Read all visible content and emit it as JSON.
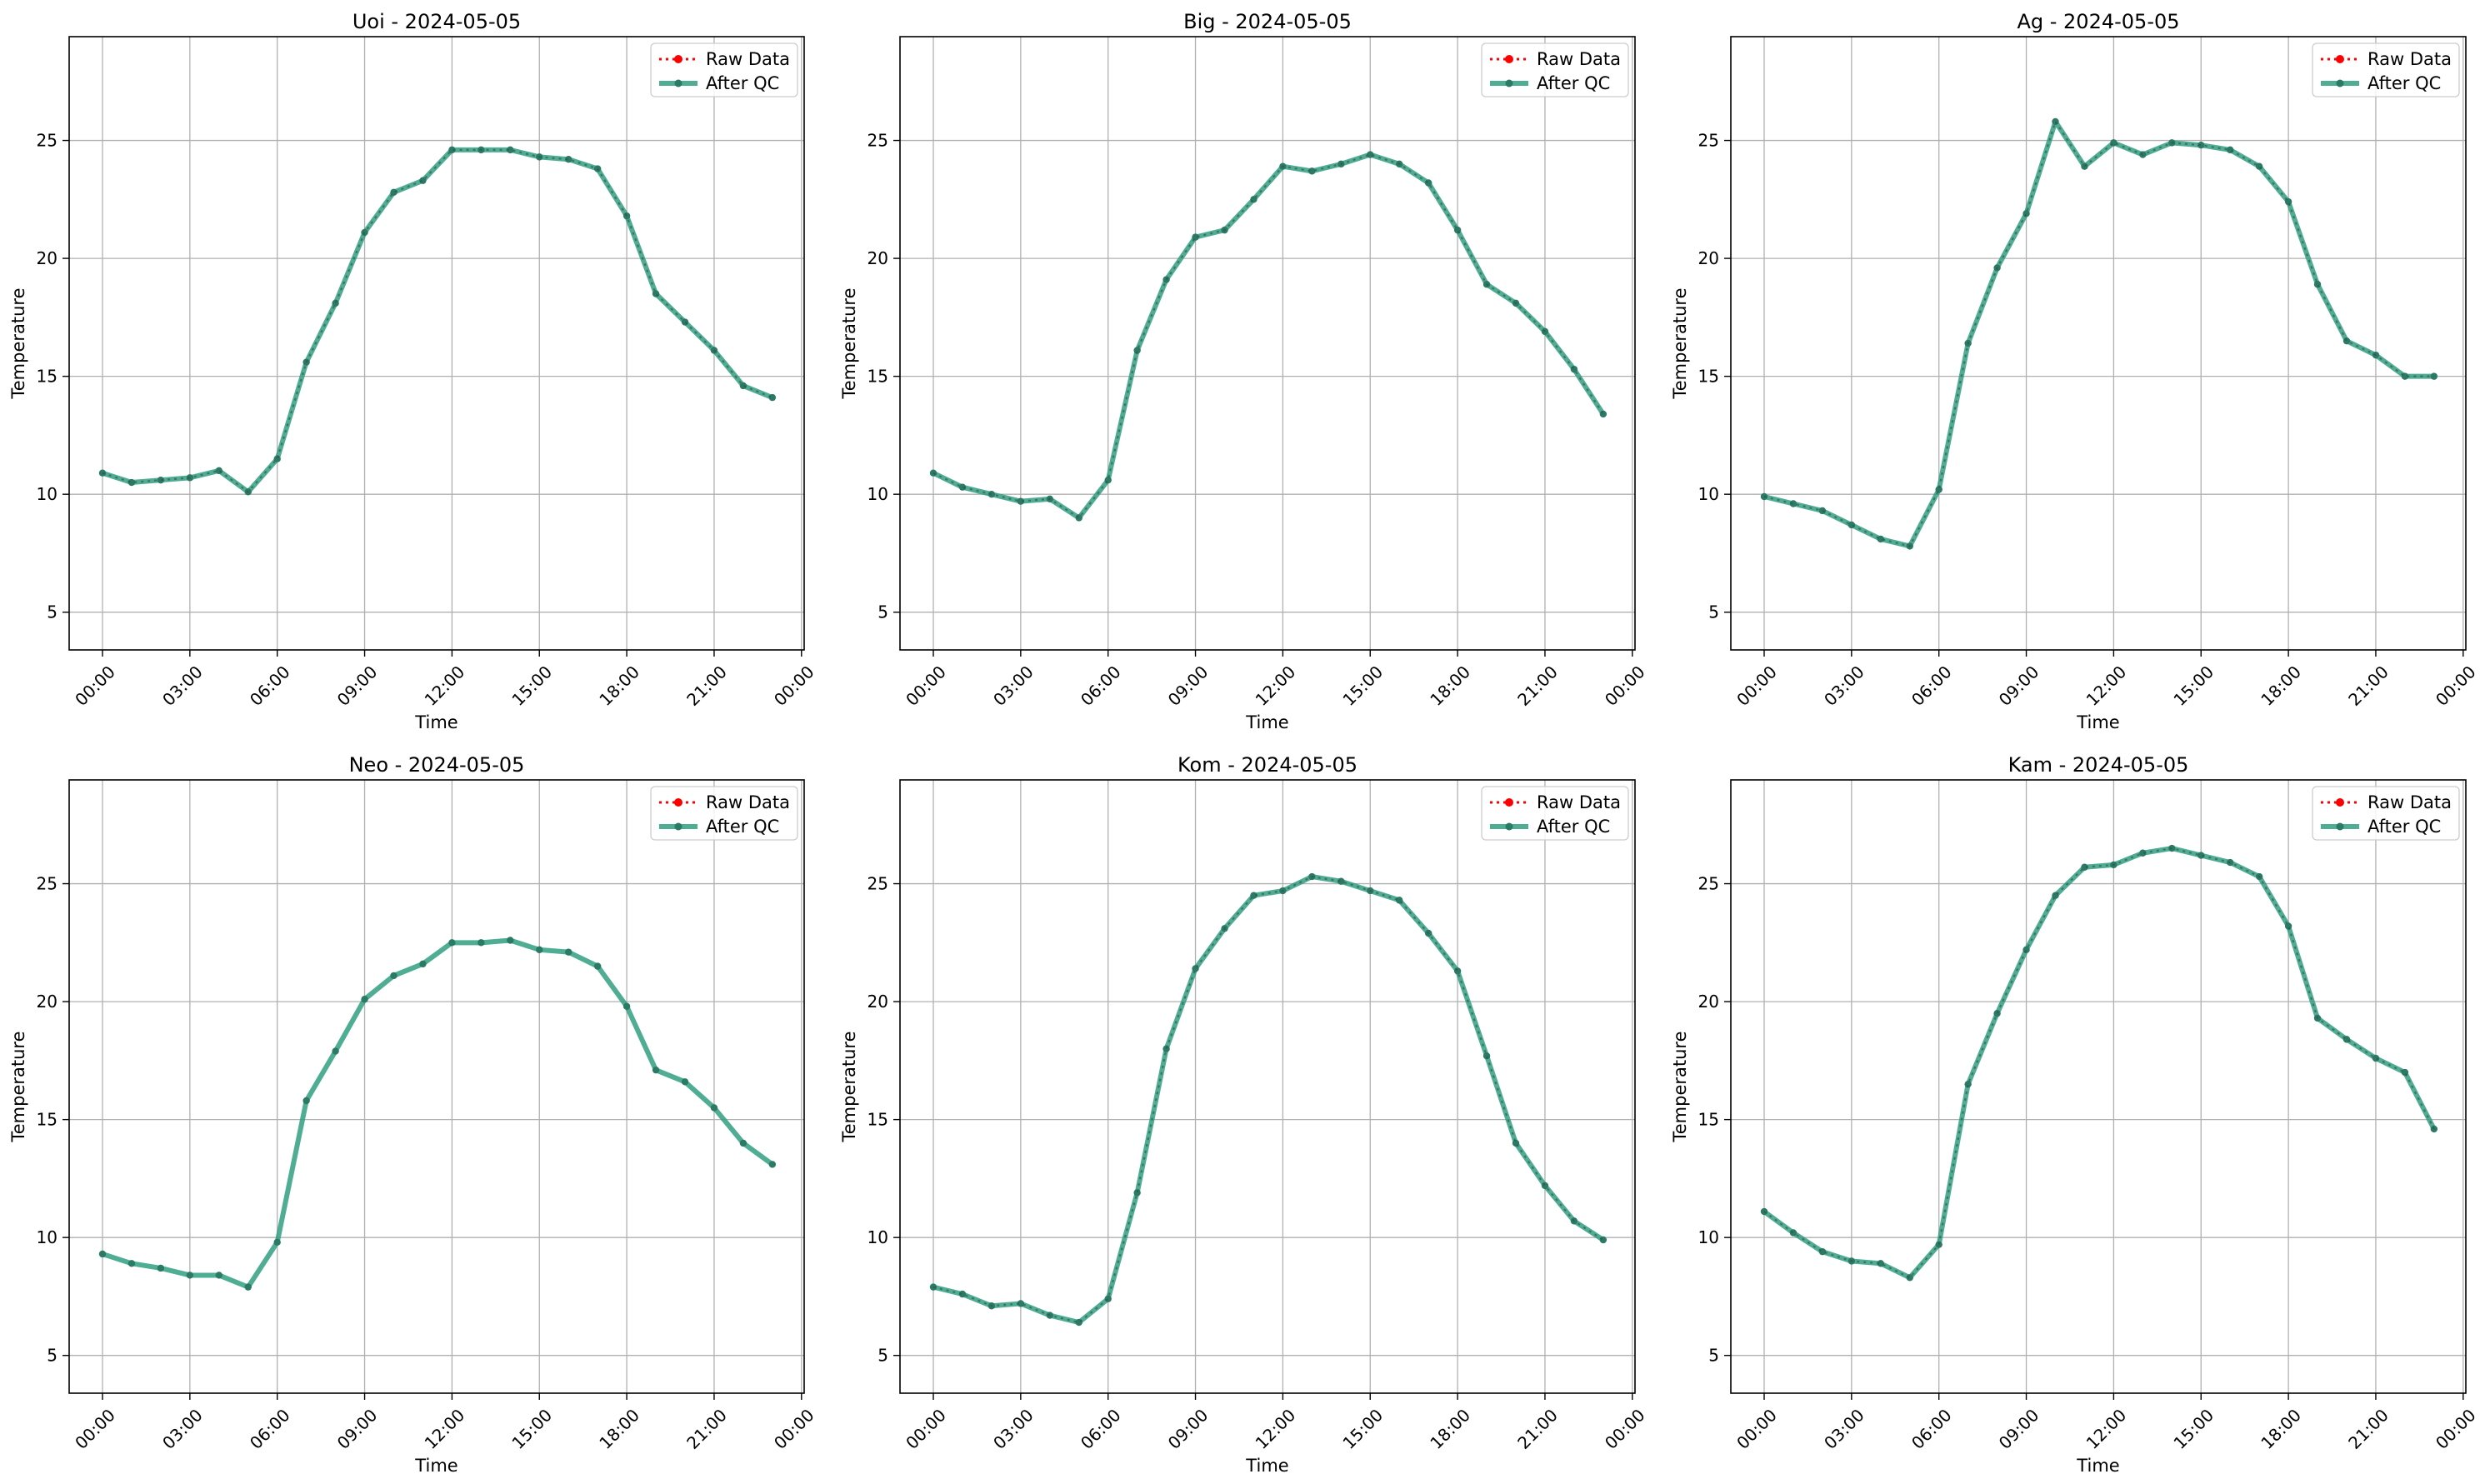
{
  "chart_data": [
    {
      "type": "line",
      "title": "Uoi - 2024-05-05",
      "xlabel": "Time",
      "ylabel": "Temperature",
      "x": [
        0,
        1,
        2,
        3,
        4,
        5,
        6,
        7,
        8,
        9,
        10,
        11,
        12,
        13,
        14,
        15,
        16,
        17,
        18,
        19,
        20,
        21,
        22,
        23
      ],
      "x_tick_labels": [
        "00:00",
        "03:00",
        "06:00",
        "09:00",
        "12:00",
        "15:00",
        "18:00",
        "21:00",
        "00:00"
      ],
      "y_ticks": [
        5,
        10,
        15,
        20,
        25
      ],
      "ylim": [
        3.4,
        29.4
      ],
      "grid": true,
      "legend_position": "top-right",
      "series": [
        {
          "name": "Raw Data",
          "values": [
            10.9,
            10.5,
            10.6,
            10.7,
            11.0,
            10.1,
            11.5,
            15.6,
            18.1,
            21.1,
            22.8,
            23.3,
            24.6,
            24.6,
            24.6,
            24.3,
            24.2,
            23.8,
            21.8,
            18.5,
            17.3,
            16.1,
            14.6,
            14.1
          ]
        },
        {
          "name": "After QC",
          "values": [
            10.9,
            10.5,
            10.6,
            10.7,
            11.0,
            10.1,
            11.5,
            15.6,
            18.1,
            21.1,
            22.8,
            23.3,
            24.6,
            24.6,
            24.6,
            24.3,
            24.2,
            23.8,
            21.8,
            18.5,
            17.3,
            16.1,
            14.6,
            14.1
          ]
        }
      ]
    },
    {
      "type": "line",
      "title": "Big - 2024-05-05",
      "xlabel": "Time",
      "ylabel": "Temperature",
      "x": [
        0,
        1,
        2,
        3,
        4,
        5,
        6,
        7,
        8,
        9,
        10,
        11,
        12,
        13,
        14,
        15,
        16,
        17,
        18,
        19,
        20,
        21,
        22,
        23
      ],
      "x_tick_labels": [
        "00:00",
        "03:00",
        "06:00",
        "09:00",
        "12:00",
        "15:00",
        "18:00",
        "21:00",
        "00:00"
      ],
      "y_ticks": [
        5,
        10,
        15,
        20,
        25
      ],
      "ylim": [
        3.4,
        29.4
      ],
      "grid": true,
      "legend_position": "top-right",
      "series": [
        {
          "name": "Raw Data",
          "values": [
            10.9,
            10.3,
            10.0,
            9.7,
            9.8,
            9.0,
            10.6,
            16.1,
            19.1,
            20.9,
            21.2,
            22.5,
            23.9,
            23.7,
            24.0,
            24.4,
            24.0,
            23.2,
            21.2,
            18.9,
            18.1,
            16.9,
            15.3,
            13.4
          ]
        },
        {
          "name": "After QC",
          "values": [
            10.9,
            10.3,
            10.0,
            9.7,
            9.8,
            9.0,
            10.6,
            16.1,
            19.1,
            20.9,
            21.2,
            22.5,
            23.9,
            23.7,
            24.0,
            24.4,
            24.0,
            23.2,
            21.2,
            18.9,
            18.1,
            16.9,
            15.3,
            13.4
          ]
        }
      ]
    },
    {
      "type": "line",
      "title": "Ag - 2024-05-05",
      "xlabel": "Time",
      "ylabel": "Temperature",
      "x": [
        0,
        1,
        2,
        3,
        4,
        5,
        6,
        7,
        8,
        9,
        10,
        11,
        12,
        13,
        14,
        15,
        16,
        17,
        18,
        19,
        20,
        21,
        22,
        23
      ],
      "x_tick_labels": [
        "00:00",
        "03:00",
        "06:00",
        "09:00",
        "12:00",
        "15:00",
        "18:00",
        "21:00",
        "00:00"
      ],
      "y_ticks": [
        5,
        10,
        15,
        20,
        25
      ],
      "ylim": [
        3.4,
        29.4
      ],
      "grid": true,
      "legend_position": "top-right",
      "series": [
        {
          "name": "Raw Data",
          "values": [
            9.9,
            9.6,
            9.3,
            8.7,
            8.1,
            7.8,
            10.2,
            16.4,
            19.6,
            21.9,
            25.8,
            23.9,
            24.9,
            24.4,
            24.9,
            24.8,
            24.6,
            23.9,
            22.4,
            18.9,
            16.5,
            15.9,
            15.0,
            15.0
          ]
        },
        {
          "name": "After QC",
          "values": [
            9.9,
            9.6,
            9.3,
            8.7,
            8.1,
            7.8,
            10.2,
            16.4,
            19.6,
            21.9,
            25.8,
            23.9,
            24.9,
            24.4,
            24.9,
            24.8,
            24.6,
            23.9,
            22.4,
            18.9,
            16.5,
            15.9,
            15.0,
            15.0
          ]
        }
      ]
    },
    {
      "type": "line",
      "title": "Neo - 2024-05-05",
      "xlabel": "Time",
      "ylabel": "Temperature",
      "x": [
        0,
        1,
        2,
        3,
        4,
        5,
        6,
        7,
        8,
        9,
        10,
        11,
        12,
        13,
        14,
        15,
        16,
        17,
        18,
        19,
        20,
        21,
        22,
        23
      ],
      "x_tick_labels": [
        "00:00",
        "03:00",
        "06:00",
        "09:00",
        "12:00",
        "15:00",
        "18:00",
        "21:00",
        "00:00"
      ],
      "y_ticks": [
        5,
        10,
        15,
        20,
        25
      ],
      "ylim": [
        3.4,
        29.4
      ],
      "grid": true,
      "legend_position": "top-right",
      "series": [
        {
          "name": "Raw Data",
          "values": [
            null,
            null,
            null,
            null,
            null,
            null,
            null,
            null,
            null,
            null,
            null,
            null,
            null,
            null,
            null,
            null,
            null,
            null,
            null,
            null,
            null,
            null,
            null,
            null
          ]
        },
        {
          "name": "After QC",
          "values": [
            9.3,
            8.9,
            8.7,
            8.4,
            8.4,
            7.9,
            9.8,
            15.8,
            17.9,
            20.1,
            21.1,
            21.6,
            22.5,
            22.5,
            22.6,
            22.2,
            22.1,
            21.5,
            19.8,
            17.1,
            16.6,
            15.5,
            14.0,
            13.1
          ]
        }
      ]
    },
    {
      "type": "line",
      "title": "Kom - 2024-05-05",
      "xlabel": "Time",
      "ylabel": "Temperature",
      "x": [
        0,
        1,
        2,
        3,
        4,
        5,
        6,
        7,
        8,
        9,
        10,
        11,
        12,
        13,
        14,
        15,
        16,
        17,
        18,
        19,
        20,
        21,
        22,
        23
      ],
      "x_tick_labels": [
        "00:00",
        "03:00",
        "06:00",
        "09:00",
        "12:00",
        "15:00",
        "18:00",
        "21:00",
        "00:00"
      ],
      "y_ticks": [
        5,
        10,
        15,
        20,
        25
      ],
      "ylim": [
        3.4,
        29.4
      ],
      "grid": true,
      "legend_position": "top-right",
      "series": [
        {
          "name": "Raw Data",
          "values": [
            7.9,
            7.6,
            7.1,
            7.2,
            6.7,
            6.4,
            7.4,
            11.9,
            18.0,
            21.4,
            23.1,
            24.5,
            24.7,
            25.3,
            25.1,
            24.7,
            24.3,
            22.9,
            21.3,
            17.7,
            14.0,
            12.2,
            10.7,
            9.9
          ]
        },
        {
          "name": "After QC",
          "values": [
            7.9,
            7.6,
            7.1,
            7.2,
            6.7,
            6.4,
            7.4,
            11.9,
            18.0,
            21.4,
            23.1,
            24.5,
            24.7,
            25.3,
            25.1,
            24.7,
            24.3,
            22.9,
            21.3,
            17.7,
            14.0,
            12.2,
            10.7,
            9.9
          ]
        }
      ]
    },
    {
      "type": "line",
      "title": "Kam - 2024-05-05",
      "xlabel": "Time",
      "ylabel": "Temperature",
      "x": [
        0,
        1,
        2,
        3,
        4,
        5,
        6,
        7,
        8,
        9,
        10,
        11,
        12,
        13,
        14,
        15,
        16,
        17,
        18,
        19,
        20,
        21,
        22,
        23
      ],
      "x_tick_labels": [
        "00:00",
        "03:00",
        "06:00",
        "09:00",
        "12:00",
        "15:00",
        "18:00",
        "21:00",
        "00:00"
      ],
      "y_ticks": [
        5,
        10,
        15,
        20,
        25
      ],
      "ylim": [
        3.4,
        29.4
      ],
      "grid": true,
      "legend_position": "top-right",
      "series": [
        {
          "name": "Raw Data",
          "values": [
            11.1,
            10.2,
            9.4,
            9.0,
            8.9,
            8.3,
            9.7,
            16.5,
            19.5,
            22.2,
            24.5,
            25.7,
            25.8,
            26.3,
            26.5,
            26.2,
            25.9,
            25.3,
            23.2,
            19.3,
            18.4,
            17.6,
            17.0,
            14.6
          ]
        },
        {
          "name": "After QC",
          "values": [
            11.1,
            10.2,
            9.4,
            9.0,
            8.9,
            8.3,
            9.7,
            16.5,
            19.5,
            22.2,
            24.5,
            25.7,
            25.8,
            26.3,
            26.5,
            26.2,
            25.9,
            25.3,
            23.2,
            19.3,
            18.4,
            17.6,
            17.0,
            14.6
          ]
        }
      ]
    }
  ],
  "colors": {
    "raw": "#ff0000",
    "qc_line": "#2f9f80",
    "qc_marker": "#2a7a66",
    "grid": "#b0b0b0"
  }
}
